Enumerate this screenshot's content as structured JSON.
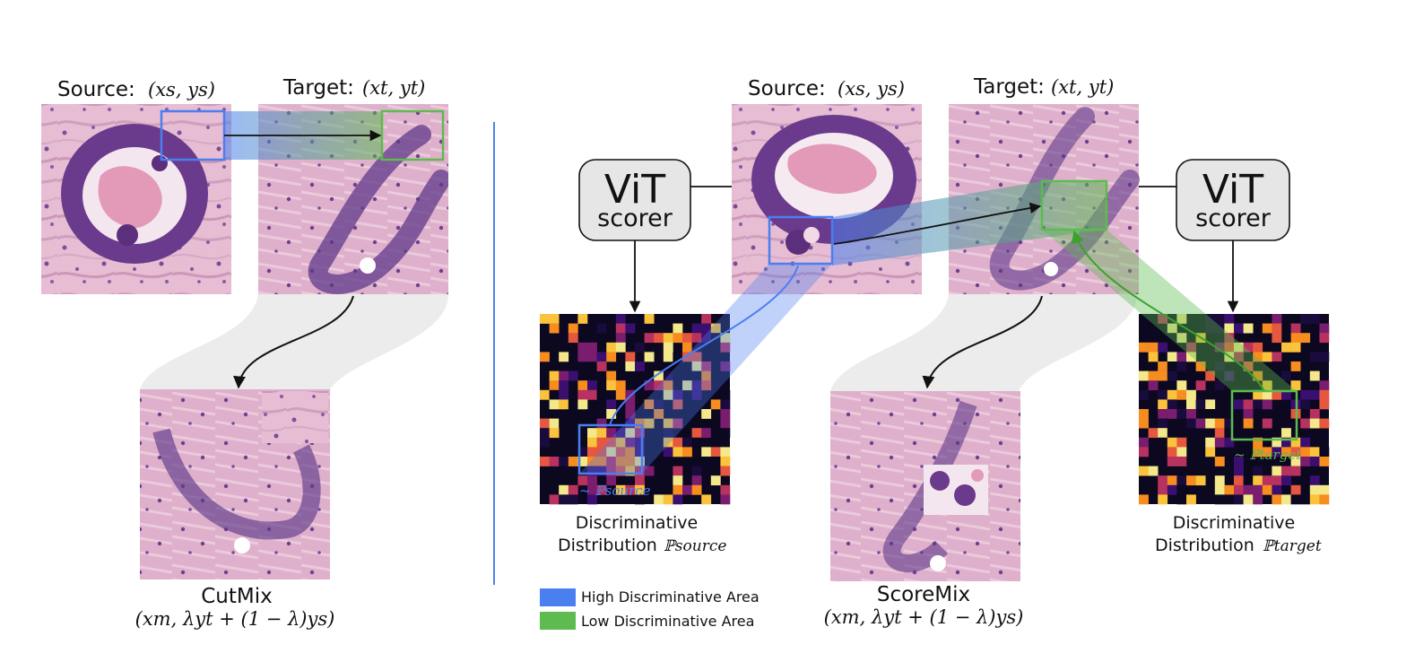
{
  "cutmix_panel": {
    "source_label": "Source:",
    "source_math": "(xs, ys)",
    "target_label": "Target:",
    "target_math": "(xt, yt)",
    "method_name": "CutMix",
    "mixed_math": "(xm, λyt + (1 − λ)ys)"
  },
  "scoremix_panel": {
    "source_label": "Source:",
    "source_math": "(xs, ys)",
    "target_label": "Target:",
    "target_math": "(xt, yt)",
    "scorer_left": {
      "line1": "ViT",
      "line2": "scorer"
    },
    "scorer_right": {
      "line1": "ViT",
      "line2": "scorer"
    },
    "source_dist": {
      "line1": "Discriminative",
      "line2": "Distribution",
      "symbol": "ℙsource",
      "region_label": "~ ℙsource"
    },
    "target_dist": {
      "line1": "Discriminative",
      "line2": "Distribution",
      "symbol": "ℙtarget",
      "region_label": "~ ℙtarget"
    },
    "method_name": "ScoreMix",
    "mixed_math": "(xm, λyt + (1 − λ)ys)"
  },
  "legend": [
    {
      "label": "High Discriminative Area",
      "color": "#4a7ff0"
    },
    {
      "label": "Low Discriminative Area",
      "color": "#5dbb4f"
    }
  ],
  "colors": {
    "high_area": "#4a7ff0",
    "low_area": "#5dbb4f",
    "divider": "#4a86e8",
    "tissue_pink": "#e3b8cf",
    "tissue_purple": "#6b3d8e",
    "heat_dark": "#0b0820"
  }
}
